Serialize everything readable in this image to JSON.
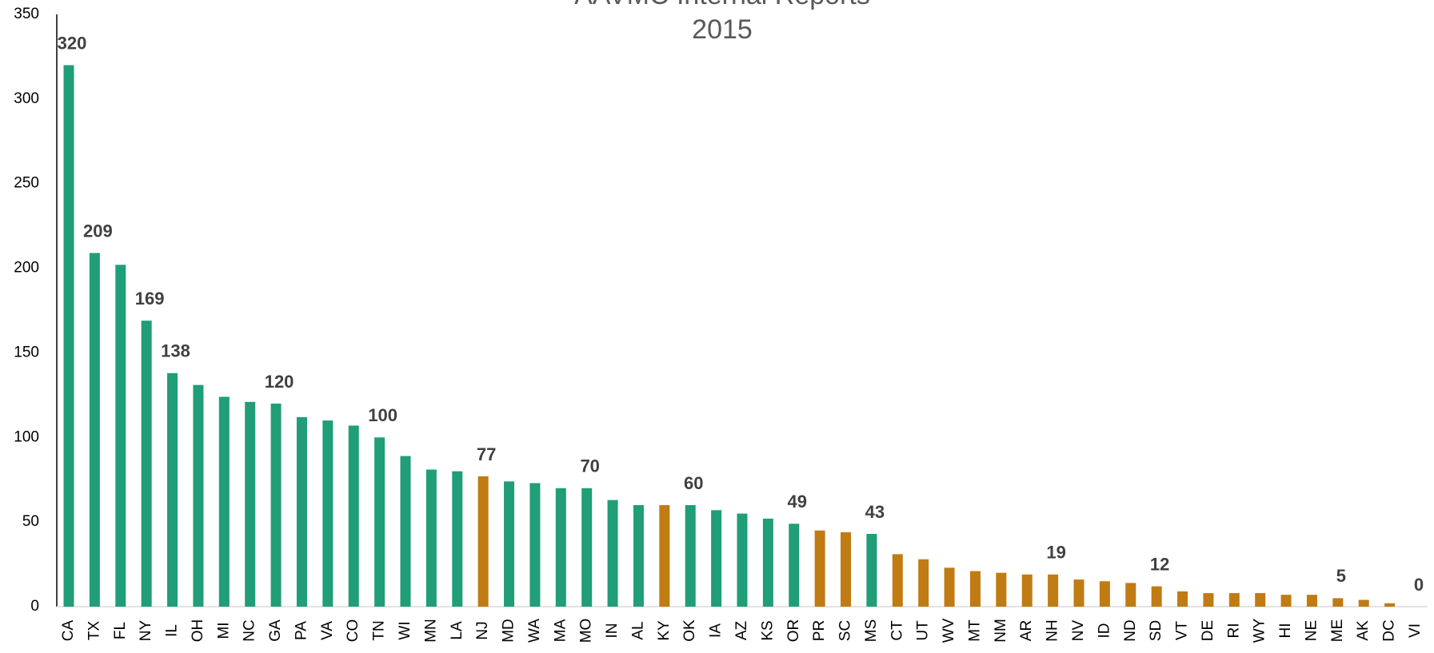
{
  "chart_data": {
    "type": "bar",
    "title": "AAVMC Internal Reports",
    "subtitle": "2015",
    "categories": [
      "CA",
      "TX",
      "FL",
      "NY",
      "IL",
      "OH",
      "MI",
      "NC",
      "GA",
      "PA",
      "VA",
      "CO",
      "TN",
      "WI",
      "MN",
      "LA",
      "NJ",
      "MD",
      "WA",
      "MA",
      "MO",
      "IN",
      "AL",
      "KY",
      "OK",
      "IA",
      "AZ",
      "KS",
      "OR",
      "PR",
      "SC",
      "MS",
      "CT",
      "UT",
      "WV",
      "MT",
      "NM",
      "AR",
      "NH",
      "NV",
      "ID",
      "ND",
      "SD",
      "VT",
      "DE",
      "RI",
      "WY",
      "HI",
      "NE",
      "ME",
      "AK",
      "DC",
      "VI"
    ],
    "values": [
      320,
      209,
      202,
      169,
      138,
      131,
      124,
      121,
      120,
      112,
      110,
      107,
      100,
      89,
      81,
      80,
      77,
      74,
      73,
      70,
      70,
      63,
      60,
      60,
      60,
      57,
      55,
      52,
      49,
      45,
      44,
      43,
      31,
      28,
      23,
      21,
      20,
      19,
      19,
      16,
      15,
      14,
      12,
      9,
      8,
      8,
      8,
      7,
      7,
      5,
      4,
      2,
      0
    ],
    "value_labels": [
      320,
      209,
      null,
      169,
      138,
      null,
      null,
      null,
      120,
      null,
      null,
      null,
      100,
      null,
      null,
      null,
      77,
      null,
      null,
      null,
      70,
      null,
      null,
      null,
      60,
      null,
      null,
      null,
      49,
      null,
      null,
      43,
      null,
      null,
      null,
      null,
      null,
      null,
      19,
      null,
      null,
      null,
      12,
      null,
      null,
      null,
      null,
      null,
      null,
      5,
      null,
      null,
      0
    ],
    "colors": [
      "#1f9e77",
      "#1f9e77",
      "#1f9e77",
      "#1f9e77",
      "#1f9e77",
      "#1f9e77",
      "#1f9e77",
      "#1f9e77",
      "#1f9e77",
      "#1f9e77",
      "#1f9e77",
      "#1f9e77",
      "#1f9e77",
      "#1f9e77",
      "#1f9e77",
      "#1f9e77",
      "#c07b12",
      "#1f9e77",
      "#1f9e77",
      "#1f9e77",
      "#1f9e77",
      "#1f9e77",
      "#1f9e77",
      "#c07b12",
      "#1f9e77",
      "#1f9e77",
      "#1f9e77",
      "#1f9e77",
      "#1f9e77",
      "#c07b12",
      "#c07b12",
      "#1f9e77",
      "#c07b12",
      "#c07b12",
      "#c07b12",
      "#c07b12",
      "#c07b12",
      "#c07b12",
      "#c07b12",
      "#c07b12",
      "#c07b12",
      "#c07b12",
      "#c07b12",
      "#c07b12",
      "#c07b12",
      "#c07b12",
      "#c07b12",
      "#c07b12",
      "#c07b12",
      "#c07b12",
      "#c07b12",
      "#c07b12",
      "#c07b12"
    ],
    "ylim": [
      0,
      350
    ],
    "yticks": [
      0,
      50,
      100,
      150,
      200,
      250,
      300,
      350
    ],
    "grid": false
  }
}
